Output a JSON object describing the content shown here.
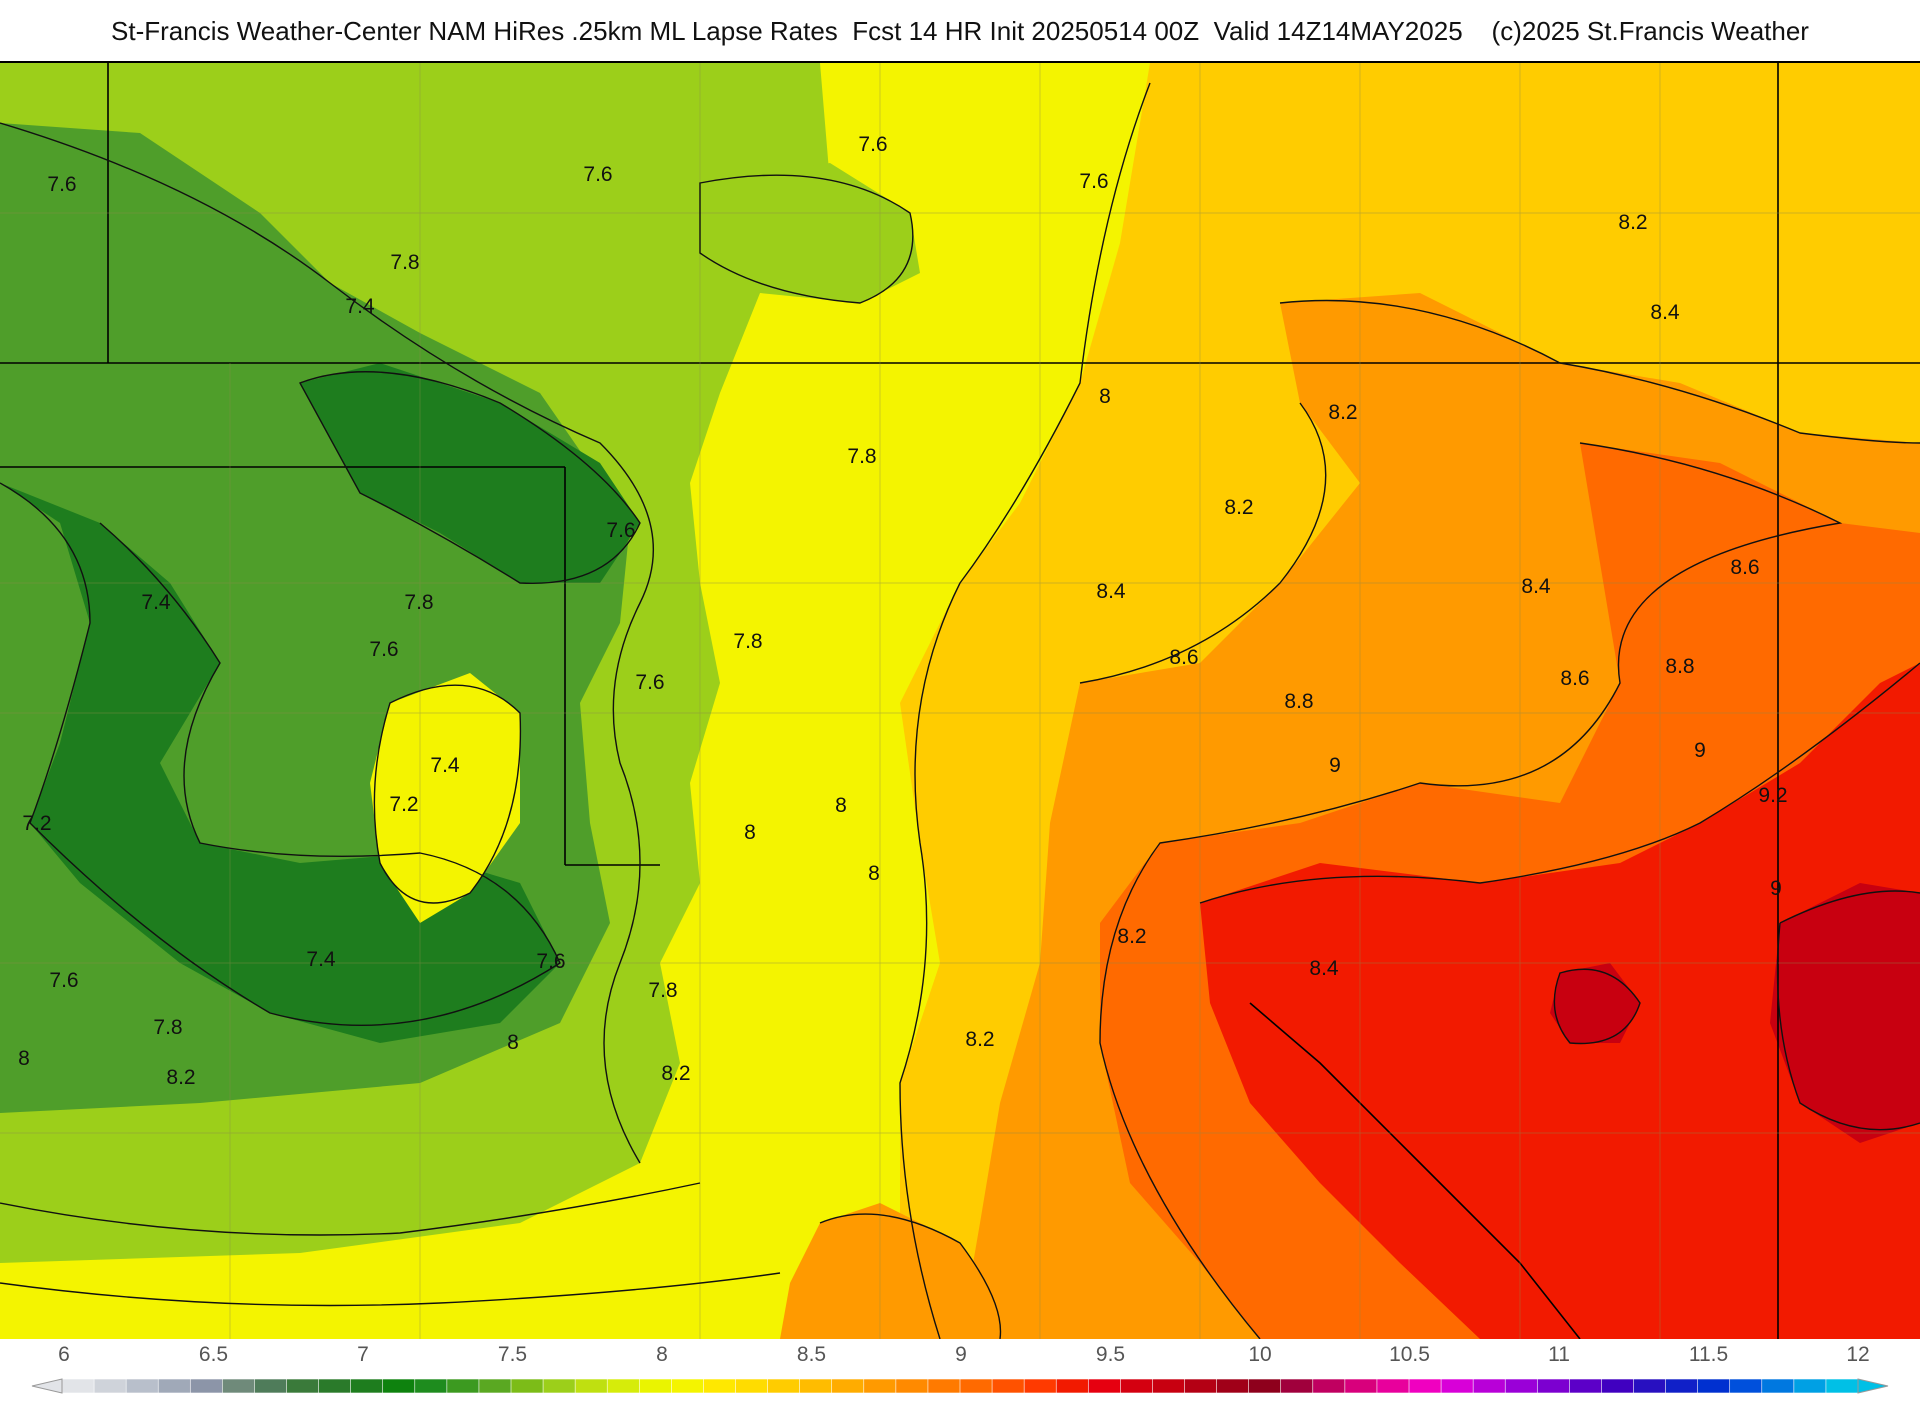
{
  "header": {
    "title": "St-Francis Weather-Center NAM HiRes .25km ML Lapse Rates  Fcst 14 HR Init 20250514 00Z  Valid 14Z14MAY2025    (c)2025 St.Francis Weather"
  },
  "colors": {
    "dark_green": "#1e7d1e",
    "green": "#4f9e2a",
    "light_green": "#9ccf1a",
    "yellow_green": "#d6ec0a",
    "yellow": "#f4f400",
    "gold": "#ffcc00",
    "orange": "#ff9a00",
    "dark_orange": "#ff6a00",
    "red": "#f21a00",
    "dark_red": "#c80010"
  },
  "contour_labels": [
    {
      "text": "7.6",
      "value": 7.6
    },
    {
      "text": "7.6",
      "value": 7.6
    },
    {
      "text": "7.6",
      "value": 7.6
    },
    {
      "text": "7.6",
      "value": 7.6
    },
    {
      "text": "7.8",
      "value": 7.8
    },
    {
      "text": "7.4",
      "value": 7.4
    },
    {
      "text": "8.2",
      "value": 8.2
    },
    {
      "text": "8.4",
      "value": 8.4
    },
    {
      "text": "8",
      "value": 8.0
    },
    {
      "text": "8.2",
      "value": 8.2
    },
    {
      "text": "7.8",
      "value": 7.8
    },
    {
      "text": "7.6",
      "value": 7.6
    },
    {
      "text": "7.4",
      "value": 7.4
    },
    {
      "text": "7.8",
      "value": 7.8
    },
    {
      "text": "8.2",
      "value": 8.2
    },
    {
      "text": "8.6",
      "value": 8.6
    },
    {
      "text": "7.6",
      "value": 7.6
    },
    {
      "text": "7.8",
      "value": 7.8
    },
    {
      "text": "8.4",
      "value": 8.4
    },
    {
      "text": "8.4",
      "value": 8.4
    },
    {
      "text": "8.6",
      "value": 8.6
    },
    {
      "text": "8.6",
      "value": 8.6
    },
    {
      "text": "8.8",
      "value": 8.8
    },
    {
      "text": "7.6",
      "value": 7.6
    },
    {
      "text": "8.8",
      "value": 8.8
    },
    {
      "text": "7.4",
      "value": 7.4
    },
    {
      "text": "9",
      "value": 9.0
    },
    {
      "text": "9",
      "value": 9.0
    },
    {
      "text": "9.2",
      "value": 9.2
    },
    {
      "text": "7.2",
      "value": 7.2
    },
    {
      "text": "8",
      "value": 8.0
    },
    {
      "text": "7.2",
      "value": 7.2
    },
    {
      "text": "8",
      "value": 8.0
    },
    {
      "text": "8",
      "value": 8.0
    },
    {
      "text": "9",
      "value": 9.0
    },
    {
      "text": "8.2",
      "value": 8.2
    },
    {
      "text": "7.4",
      "value": 7.4
    },
    {
      "text": "7.6",
      "value": 7.6
    },
    {
      "text": "8.4",
      "value": 8.4
    },
    {
      "text": "7.6",
      "value": 7.6
    },
    {
      "text": "7.8",
      "value": 7.8
    },
    {
      "text": "7.8",
      "value": 7.8
    },
    {
      "text": "8.2",
      "value": 8.2
    },
    {
      "text": "8",
      "value": 8.0
    },
    {
      "text": "8",
      "value": 8.0
    },
    {
      "text": "8.2",
      "value": 8.2
    },
    {
      "text": "8.2",
      "value": 8.2
    }
  ],
  "legend": {
    "ticks": [
      "6",
      "6.5",
      "7",
      "7.5",
      "8",
      "8.5",
      "9",
      "9.5",
      "10",
      "10.5",
      "11",
      "11.5",
      "12"
    ],
    "colors": [
      "#e2e4e8",
      "#cfd3da",
      "#b8bfcb",
      "#a0a9b8",
      "#8c95a8",
      "#6f8a7a",
      "#4f7c5a",
      "#3a7a3a",
      "#2a7a2a",
      "#1e7d1e",
      "#0e820e",
      "#1e8c1e",
      "#3c9a20",
      "#5aa822",
      "#7cbc18",
      "#9ccf1a",
      "#bfe010",
      "#d6ec0a",
      "#eaf400",
      "#f4f400",
      "#ffe800",
      "#ffdc00",
      "#ffcc00",
      "#ffbc00",
      "#ffac00",
      "#ff9a00",
      "#ff8a00",
      "#ff7a00",
      "#ff6a00",
      "#ff5200",
      "#ff3a00",
      "#f21a00",
      "#e60010",
      "#d40010",
      "#c80010",
      "#b40014",
      "#a00018",
      "#8e001c",
      "#a0003c",
      "#c00060",
      "#d8007c",
      "#e8009c",
      "#f000c0",
      "#d800d8",
      "#b800d8",
      "#9a00d8",
      "#7c00d0",
      "#5c00c8",
      "#4000c0",
      "#2810c0",
      "#1020c8",
      "#0030d0",
      "#0050dc",
      "#0078e0",
      "#00a0e4",
      "#00c0e6"
    ]
  }
}
